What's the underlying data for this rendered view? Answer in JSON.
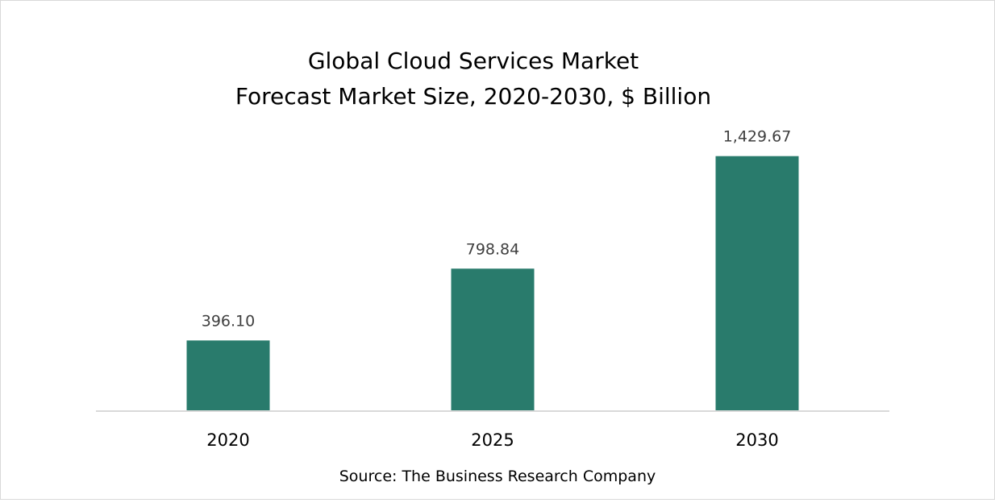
{
  "chart_data": {
    "type": "bar",
    "title_line1": "Global Cloud Services Market",
    "title_line2": "Forecast Market Size, 2020-2030, $ Billion",
    "categories": [
      "2020",
      "2025",
      "2030"
    ],
    "values": [
      396.1,
      798.84,
      1429.67
    ],
    "value_labels": [
      "396.10",
      "798.84",
      "1,429.67"
    ],
    "xlabel": "",
    "ylabel": "",
    "ylim": [
      0,
      1600
    ],
    "grid": false,
    "legend": "none",
    "source": "Source: The Business Research Company",
    "colors": {
      "bar": "#297b6c",
      "axis": "#d9d9d9",
      "title": "#000000",
      "label": "#404040",
      "tick": "#000000"
    }
  }
}
